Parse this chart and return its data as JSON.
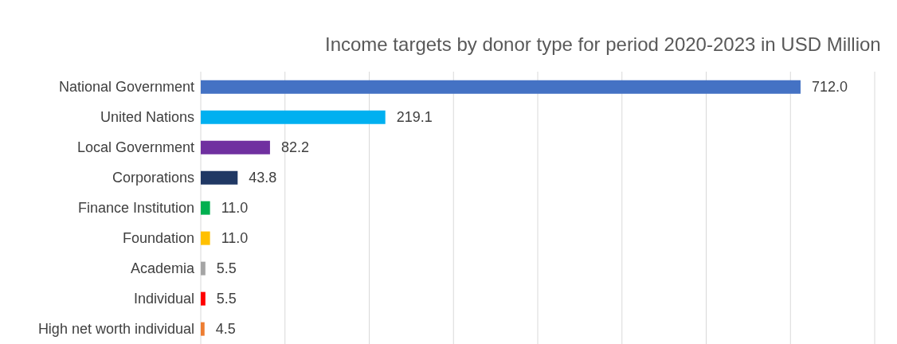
{
  "chart_data": {
    "type": "bar",
    "orientation": "horizontal",
    "title": "Income targets by donor type for period 2020-2023 in USD Million",
    "categories": [
      "National Government",
      "United Nations",
      "Local Government",
      "Corporations",
      "Finance Institution",
      "Foundation",
      "Academia",
      "Individual",
      "High net worth individual"
    ],
    "values": [
      712.0,
      219.1,
      82.2,
      43.8,
      11.0,
      11.0,
      5.5,
      5.5,
      4.5
    ],
    "value_labels": [
      "712.0",
      "219.1",
      "82.2",
      "43.8",
      "11.0",
      "11.0",
      "5.5",
      "5.5",
      "4.5"
    ],
    "colors": [
      "#4472c4",
      "#00b0f0",
      "#7030a0",
      "#203864",
      "#00b050",
      "#ffc000",
      "#a5a5a5",
      "#ff0000",
      "#ed7d31"
    ],
    "xlim": [
      0,
      800
    ],
    "grid": "x",
    "tick_labels": "y"
  }
}
